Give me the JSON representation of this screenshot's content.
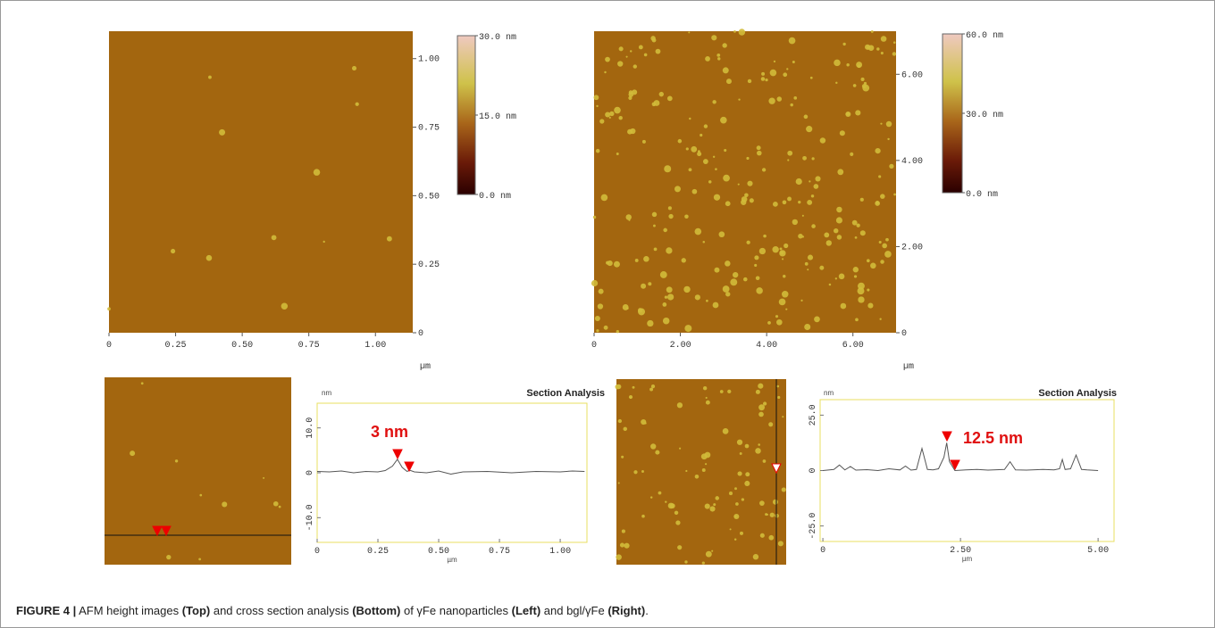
{
  "images": [
    {
      "xlim": [
        0,
        1.14
      ],
      "ylim": [
        0,
        1.1
      ],
      "xticks": [
        0,
        0.25,
        {
          "value": 0.5,
          "label": "0.50"
        },
        0.75,
        {
          "value": 1,
          "label": "1.00"
        }
      ],
      "yticks": [
        0,
        0.25,
        {
          "value": 0.5,
          "label": "0.50"
        },
        0.75,
        {
          "value": 1,
          "label": "1.00"
        }
      ],
      "x_label": "µm",
      "colorbar": {
        "lim": [
          0,
          30
        ],
        "ticks": [
          {
            "value": 30,
            "label": "30.0 nm"
          },
          {
            "value": 15,
            "label": "15.0 nm"
          },
          {
            "value": 0,
            "label": "0.0 nm"
          }
        ]
      }
    },
    {
      "xlim": [
        0,
        7
      ],
      "ylim": [
        0,
        7
      ],
      "xticks": [
        0,
        {
          "value": 2,
          "label": "2.00"
        },
        {
          "value": 4,
          "label": "4.00"
        },
        {
          "value": 6,
          "label": "6.00"
        }
      ],
      "yticks": [
        0,
        {
          "value": 2,
          "label": "2.00"
        },
        {
          "value": 4,
          "label": "4.00"
        },
        {
          "value": 6,
          "label": "6.00"
        }
      ],
      "x_label": "µm",
      "colorbar": {
        "lim": [
          0,
          60
        ],
        "ticks": [
          {
            "value": 60,
            "label": "60.0 nm"
          },
          {
            "value": 30,
            "label": "30.0 nm"
          },
          {
            "value": 0,
            "label": "0.0 nm"
          }
        ]
      }
    }
  ],
  "chart_data": [
    {
      "type": "line",
      "title": "Section Analysis",
      "y_label": "nm",
      "x_label": "µm",
      "annotation": "3 nm",
      "color": "#555555",
      "xlim": [
        0,
        1.11
      ],
      "ylim": [
        -15.5,
        15.5
      ],
      "xticks": [
        0,
        0.25,
        {
          "value": 0.5,
          "label": "0.50"
        },
        0.75,
        {
          "value": 1,
          "label": "1.00"
        }
      ],
      "yticks": [
        {
          "value": -10,
          "label": "-10.0"
        },
        0,
        {
          "value": 10,
          "label": "10.0"
        }
      ],
      "x": [
        0,
        0.05,
        0.1,
        0.15,
        0.2,
        0.25,
        0.28,
        0.31,
        0.33,
        0.35,
        0.37,
        0.38,
        0.4,
        0.45,
        0.5,
        0.55,
        0.6,
        0.7,
        0.8,
        0.9,
        1.0,
        1.05,
        1.1
      ],
      "values": [
        0.3,
        0.2,
        0.4,
        0,
        0.3,
        0.2,
        0.5,
        1.5,
        3,
        1.2,
        0.3,
        0.6,
        0.2,
        0,
        0.4,
        -0.3,
        0.2,
        0.3,
        0,
        0.3,
        0.2,
        0.4,
        0.3
      ]
    },
    {
      "type": "line",
      "title": "Section Analysis",
      "y_label": "nm",
      "x_label": "µm",
      "annotation": "12.5 nm",
      "color": "#555555",
      "xlim": [
        -0.05,
        5.29
      ],
      "ylim": [
        -32,
        32
      ],
      "xticks": [
        0,
        {
          "value": 2.5,
          "label": "2.50"
        },
        {
          "value": 5,
          "label": "5.00"
        }
      ],
      "yticks": [
        {
          "value": -25,
          "label": "-25.0"
        },
        0,
        {
          "value": 25,
          "label": "25.0"
        }
      ],
      "x": [
        0,
        0.2,
        0.3,
        0.4,
        0.5,
        0.6,
        0.8,
        1.0,
        1.2,
        1.4,
        1.5,
        1.6,
        1.7,
        1.8,
        1.9,
        2.0,
        2.1,
        2.2,
        2.25,
        2.3,
        2.4,
        2.6,
        2.8,
        3.0,
        3.3,
        3.4,
        3.5,
        3.7,
        4.0,
        4.2,
        4.3,
        4.35,
        4.4,
        4.5,
        4.6,
        4.7,
        4.8,
        5.0
      ],
      "values": [
        0,
        0.5,
        2.5,
        0.3,
        1.8,
        0.2,
        0.4,
        0,
        0.8,
        0.3,
        2,
        0.2,
        0.5,
        10,
        0.5,
        0.3,
        0.8,
        6,
        12.5,
        4,
        0,
        0.3,
        0.5,
        0.2,
        0.5,
        4,
        0.3,
        0.2,
        0.5,
        0.3,
        0.8,
        5,
        0.5,
        0.8,
        7,
        0.5,
        0.3,
        0
      ]
    }
  ],
  "caption": [
    {
      "text": "FIGURE 4 |",
      "bold": true
    },
    {
      "text": " AFM height images ",
      "bold": false
    },
    {
      "text": "(Top)",
      "bold": true
    },
    {
      "text": " and cross section analysis ",
      "bold": false
    },
    {
      "text": "(Bottom)",
      "bold": true
    },
    {
      "text": " of γFe nanoparticles ",
      "bold": false
    },
    {
      "text": "(Left)",
      "bold": true
    },
    {
      "text": " and bgl/γFe ",
      "bold": false
    },
    {
      "text": "(Right)",
      "bold": true
    },
    {
      "text": ".",
      "bold": false
    }
  ]
}
